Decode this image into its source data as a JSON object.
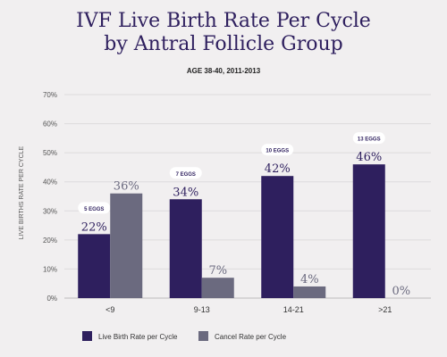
{
  "chart_data": {
    "type": "bar",
    "title_line1": "IVF Live Birth Rate Per Cycle",
    "title_line2": "by Antral Follicle Group",
    "subtitle": "AGE 38-40, 2011-2013",
    "ylabel": "LIVE BIRTHS RATE PER CYCLE",
    "ylim": [
      0,
      70
    ],
    "yticks": [
      "0%",
      "10%",
      "20%",
      "30%",
      "40%",
      "50%",
      "60%",
      "70%"
    ],
    "ytick_values": [
      0,
      10,
      20,
      30,
      40,
      50,
      60,
      70
    ],
    "categories": [
      "<9",
      "9-13",
      "14-21",
      ">21"
    ],
    "series": [
      {
        "name": "Live Birth Rate per Cycle",
        "color": "#2e1f5e",
        "values": [
          22,
          34,
          42,
          46
        ],
        "labels": [
          "22%",
          "34%",
          "42%",
          "46%"
        ],
        "badges": [
          "5 EGGS",
          "7 EGGS",
          "10 EGGS",
          "13 EGGS"
        ]
      },
      {
        "name": "Cancel Rate per Cycle",
        "color": "#6b6a7f",
        "values": [
          36,
          7,
          4,
          0
        ],
        "labels": [
          "36%",
          "7%",
          "4%",
          "0%"
        ]
      }
    ],
    "grid": true,
    "legend_position": "bottom-left"
  }
}
